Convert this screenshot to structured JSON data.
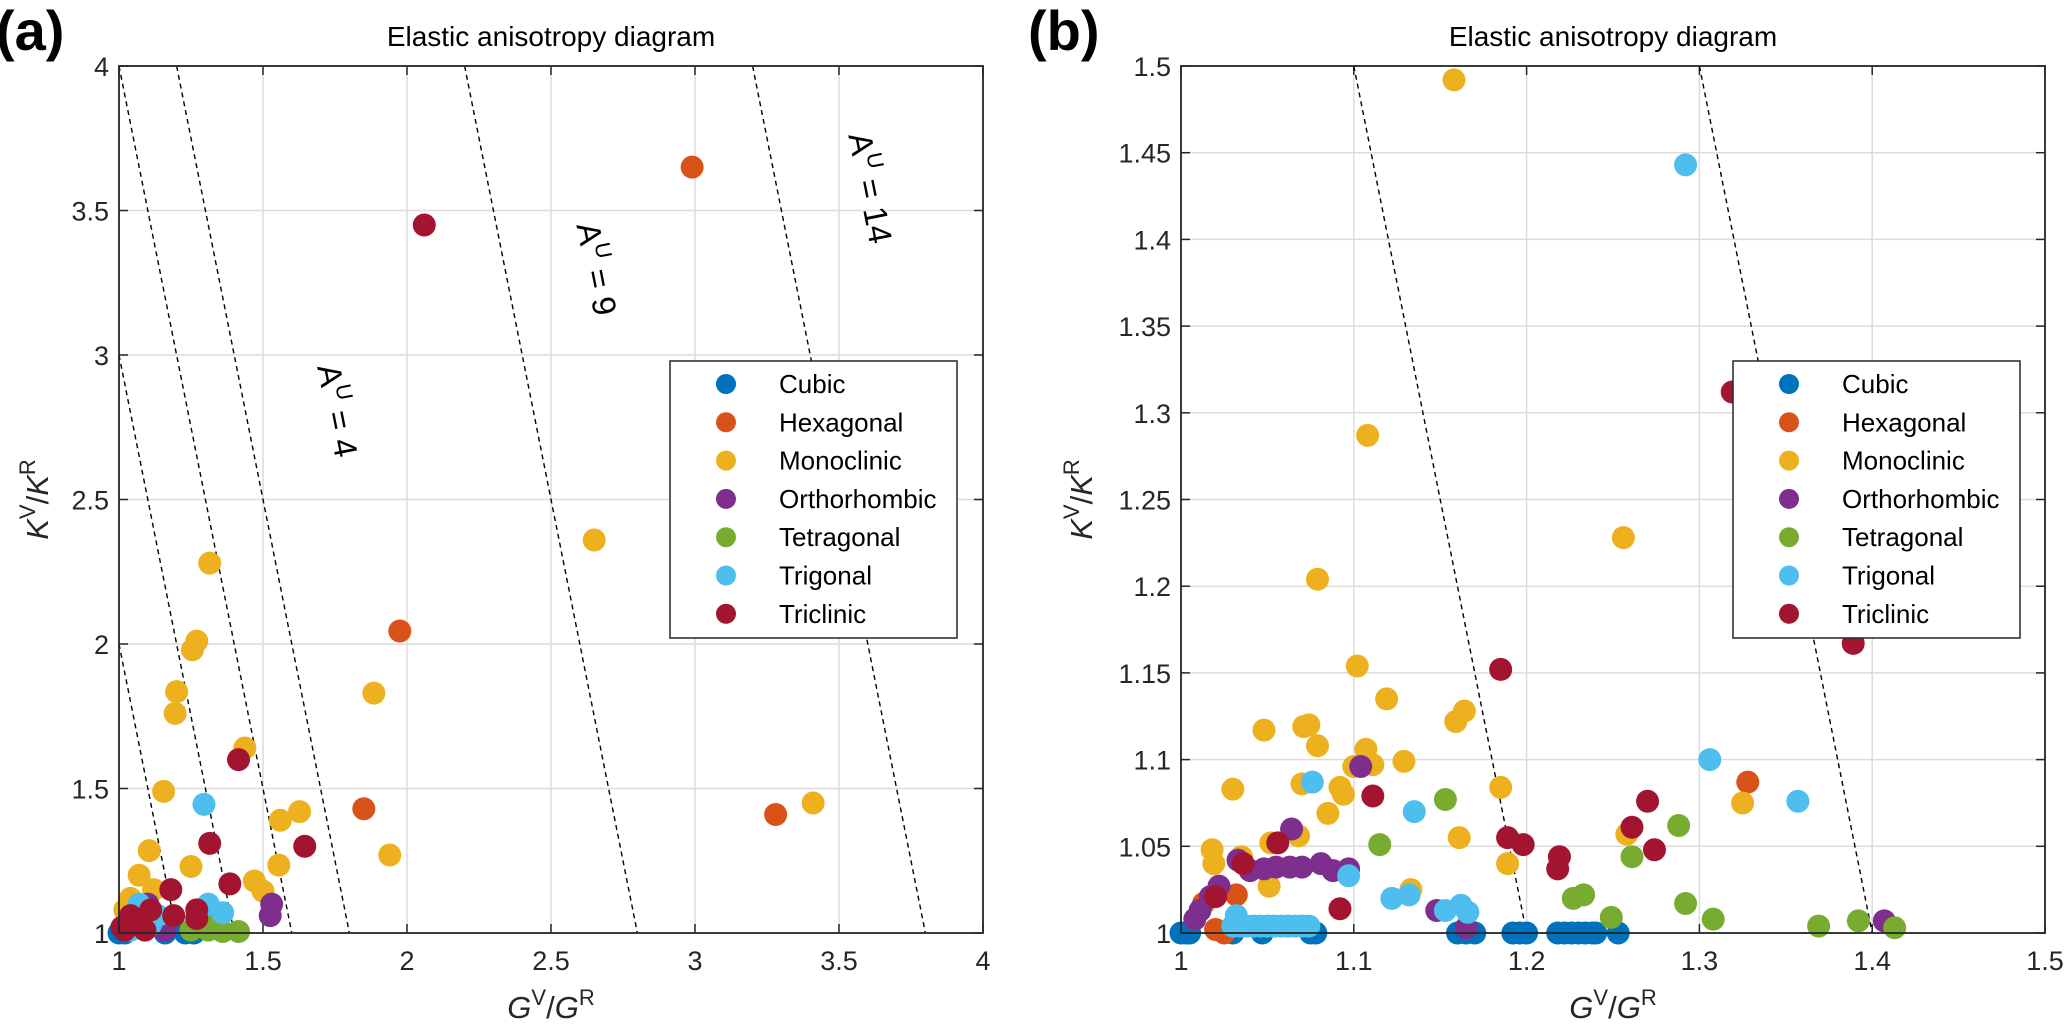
{
  "colors": {
    "Cubic": "#0072BD",
    "Hexagonal": "#D95319",
    "Monoclinic": "#EDB120",
    "Orthorhombic": "#7E2F8E",
    "Tetragonal": "#77AC30",
    "Trigonal": "#4DBEEE",
    "Triclinic": "#A2142F"
  },
  "chart_data": [
    {
      "panel_label": "(a)",
      "type": "scatter",
      "title": "Elastic anisotropy diagram",
      "xlabel": {
        "b1": "G",
        "s1": "V",
        "sep": "/",
        "b2": "G",
        "s2": "R"
      },
      "ylabel": {
        "b1": "K",
        "s1": "V",
        "sep": "/",
        "b2": "K",
        "s2": "R"
      },
      "xlim": [
        1,
        4
      ],
      "ylim": [
        1,
        4
      ],
      "xticks": [
        "1",
        "1.5",
        "2",
        "2.5",
        "3",
        "3.5",
        "4"
      ],
      "yticks": [
        "1",
        "1.5",
        "2",
        "2.5",
        "3",
        "3.5",
        "4"
      ],
      "grid": true,
      "legend_position": "center-right",
      "iso_lines_AU": [
        1,
        2,
        3,
        4,
        9,
        14
      ],
      "annotations": [
        {
          "base": "A",
          "sup": "U",
          "rest": " = 4"
        },
        {
          "base": "A",
          "sup": "U",
          "rest": " = 9"
        },
        {
          "base": "A",
          "sup": "U",
          "rest": " = 14"
        }
      ],
      "series": [
        {
          "name": "Cubic",
          "points": [
            [
              1.0,
              1.0
            ],
            [
              1.02,
              1.0
            ],
            [
              1.16,
              1.0
            ],
            [
              1.23,
              1.0
            ],
            [
              1.26,
              1.0
            ]
          ]
        },
        {
          "name": "Hexagonal",
          "points": [
            [
              2.99,
              3.65
            ],
            [
              1.975,
              2.045
            ],
            [
              1.85,
              1.43
            ],
            [
              3.28,
              1.41
            ]
          ]
        },
        {
          "name": "Monoclinic",
          "points": [
            [
              2.65,
              2.36
            ],
            [
              3.41,
              1.45
            ],
            [
              1.885,
              1.83
            ],
            [
              1.94,
              1.27
            ],
            [
              1.315,
              2.28
            ],
            [
              1.27,
              2.01
            ],
            [
              1.255,
              1.98
            ],
            [
              1.2,
              1.835
            ],
            [
              1.195,
              1.76
            ],
            [
              1.437,
              1.64
            ],
            [
              1.155,
              1.49
            ],
            [
              1.627,
              1.42
            ],
            [
              1.56,
              1.39
            ],
            [
              1.555,
              1.235
            ],
            [
              1.105,
              1.285
            ],
            [
              1.25,
              1.23
            ],
            [
              1.47,
              1.18
            ],
            [
              1.5,
              1.145
            ],
            [
              1.07,
              1.2
            ],
            [
              1.04,
              1.12
            ],
            [
              1.12,
              1.15
            ],
            [
              1.02,
              1.08
            ]
          ]
        },
        {
          "name": "Orthorhombic",
          "points": [
            [
              1.53,
              1.1
            ],
            [
              1.525,
              1.06
            ],
            [
              1.1,
              1.1
            ],
            [
              1.16,
              1.01
            ]
          ]
        },
        {
          "name": "Tetragonal",
          "points": [
            [
              1.31,
              1.01
            ],
            [
              1.36,
              1.005
            ],
            [
              1.415,
              1.005
            ],
            [
              1.25,
              1.01
            ],
            [
              1.34,
              1.07
            ]
          ]
        },
        {
          "name": "Trigonal",
          "points": [
            [
              1.295,
              1.445
            ],
            [
              1.31,
              1.1
            ],
            [
              1.36,
              1.07
            ],
            [
              1.07,
              1.1
            ],
            [
              1.135,
              1.06
            ],
            [
              1.04,
              1.01
            ],
            [
              1.11,
              1.03
            ]
          ]
        },
        {
          "name": "Triclinic",
          "points": [
            [
              2.06,
              3.45
            ],
            [
              1.415,
              1.6
            ],
            [
              1.645,
              1.3
            ],
            [
              1.315,
              1.31
            ],
            [
              1.385,
              1.17
            ],
            [
              1.18,
              1.15
            ],
            [
              1.02,
              1.01
            ],
            [
              1.07,
              1.03
            ],
            [
              1.09,
              1.01
            ],
            [
              1.11,
              1.08
            ],
            [
              1.19,
              1.06
            ],
            [
              1.27,
              1.08
            ],
            [
              1.27,
              1.05
            ],
            [
              1.04,
              1.06
            ],
            [
              1.01,
              1.02
            ]
          ]
        }
      ]
    },
    {
      "panel_label": "(b)",
      "type": "scatter",
      "title": "Elastic anisotropy diagram",
      "xlabel": {
        "b1": "G",
        "s1": "V",
        "sep": "/",
        "b2": "G",
        "s2": "R"
      },
      "ylabel": {
        "b1": "K",
        "s1": "V",
        "sep": "/",
        "b2": "K",
        "s2": "R"
      },
      "xlim": [
        1,
        1.5
      ],
      "ylim": [
        1,
        1.5
      ],
      "xticks": [
        "1",
        "1.1",
        "1.2",
        "1.3",
        "1.4",
        "1.5"
      ],
      "yticks": [
        "1",
        "1.05",
        "1.1",
        "1.15",
        "1.2",
        "1.25",
        "1.3",
        "1.35",
        "1.4",
        "1.45",
        "1.5"
      ],
      "grid": true,
      "legend_position": "center-right",
      "iso_lines_AU": [
        1,
        2
      ],
      "annotations": [],
      "series": [
        {
          "name": "Cubic",
          "points": [
            [
              1.0,
              1.0
            ],
            [
              1.003,
              1.0
            ],
            [
              1.005,
              1.0
            ],
            [
              1.03,
              1.0
            ],
            [
              1.047,
              1.0
            ],
            [
              1.075,
              1.0
            ],
            [
              1.078,
              1.0
            ],
            [
              1.16,
              1.0
            ],
            [
              1.165,
              1.0
            ],
            [
              1.17,
              1.0
            ],
            [
              1.192,
              1.0
            ],
            [
              1.196,
              1.0
            ],
            [
              1.2,
              1.0
            ],
            [
              1.218,
              1.0
            ],
            [
              1.222,
              1.0
            ],
            [
              1.226,
              1.0
            ],
            [
              1.23,
              1.0
            ],
            [
              1.234,
              1.0
            ],
            [
              1.238,
              1.0
            ],
            [
              1.24,
              1.0
            ],
            [
              1.253,
              1.0
            ]
          ]
        },
        {
          "name": "Hexagonal",
          "points": [
            [
              1.328,
              1.087
            ],
            [
              1.032,
              1.022
            ],
            [
              1.013,
              1.017
            ],
            [
              1.02,
              1.002
            ],
            [
              1.025,
              1.0
            ]
          ]
        },
        {
          "name": "Monoclinic",
          "points": [
            [
              1.158,
              1.492
            ],
            [
              1.108,
              1.287
            ],
            [
              1.079,
              1.204
            ],
            [
              1.256,
              1.228
            ],
            [
              1.102,
              1.154
            ],
            [
              1.119,
              1.135
            ],
            [
              1.164,
              1.128
            ],
            [
              1.159,
              1.122
            ],
            [
              1.048,
              1.117
            ],
            [
              1.071,
              1.119
            ],
            [
              1.074,
              1.12
            ],
            [
              1.079,
              1.108
            ],
            [
              1.107,
              1.106
            ],
            [
              1.1,
              1.096
            ],
            [
              1.111,
              1.097
            ],
            [
              1.129,
              1.099
            ],
            [
              1.03,
              1.083
            ],
            [
              1.07,
              1.086
            ],
            [
              1.092,
              1.084
            ],
            [
              1.094,
              1.08
            ],
            [
              1.085,
              1.069
            ],
            [
              1.185,
              1.084
            ],
            [
              1.161,
              1.055
            ],
            [
              1.325,
              1.075
            ],
            [
              1.018,
              1.048
            ],
            [
              1.019,
              1.04
            ],
            [
              1.035,
              1.044
            ],
            [
              1.052,
              1.052
            ],
            [
              1.068,
              1.056
            ],
            [
              1.051,
              1.027
            ],
            [
              1.133,
              1.025
            ],
            [
              1.189,
              1.04
            ],
            [
              1.258,
              1.057
            ]
          ]
        },
        {
          "name": "Orthorhombic",
          "points": [
            [
              1.104,
              1.096
            ],
            [
              1.064,
              1.06
            ],
            [
              1.033,
              1.042
            ],
            [
              1.04,
              1.036
            ],
            [
              1.048,
              1.037
            ],
            [
              1.055,
              1.038
            ],
            [
              1.063,
              1.038
            ],
            [
              1.07,
              1.038
            ],
            [
              1.081,
              1.04
            ],
            [
              1.088,
              1.036
            ],
            [
              1.097,
              1.037
            ],
            [
              1.022,
              1.027
            ],
            [
              1.017,
              1.021
            ],
            [
              1.011,
              1.013
            ],
            [
              1.008,
              1.008
            ],
            [
              1.148,
              1.013
            ],
            [
              1.165,
              1.003
            ],
            [
              1.407,
              1.007
            ]
          ]
        },
        {
          "name": "Tetragonal",
          "points": [
            [
              1.153,
              1.077
            ],
            [
              1.115,
              1.051
            ],
            [
              1.227,
              1.02
            ],
            [
              1.233,
              1.022
            ],
            [
              1.249,
              1.009
            ],
            [
              1.261,
              1.044
            ],
            [
              1.288,
              1.062
            ],
            [
              1.292,
              1.017
            ],
            [
              1.308,
              1.008
            ],
            [
              1.369,
              1.004
            ],
            [
              1.392,
              1.007
            ],
            [
              1.413,
              1.003
            ]
          ]
        },
        {
          "name": "Trigonal",
          "points": [
            [
              1.292,
              1.443
            ],
            [
              1.306,
              1.1
            ],
            [
              1.357,
              1.076
            ],
            [
              1.076,
              1.087
            ],
            [
              1.135,
              1.07
            ],
            [
              1.097,
              1.033
            ],
            [
              1.122,
              1.02
            ],
            [
              1.132,
              1.022
            ],
            [
              1.153,
              1.013
            ],
            [
              1.162,
              1.016
            ],
            [
              1.166,
              1.012
            ],
            [
              1.032,
              1.01
            ],
            [
              1.03,
              1.004
            ],
            [
              1.034,
              1.004
            ],
            [
              1.038,
              1.004
            ],
            [
              1.042,
              1.004
            ],
            [
              1.046,
              1.004
            ],
            [
              1.05,
              1.004
            ],
            [
              1.054,
              1.004
            ],
            [
              1.058,
              1.004
            ],
            [
              1.062,
              1.004
            ],
            [
              1.066,
              1.004
            ],
            [
              1.07,
              1.004
            ],
            [
              1.074,
              1.004
            ]
          ]
        },
        {
          "name": "Triclinic",
          "points": [
            [
              1.319,
              1.312
            ],
            [
              1.389,
              1.167
            ],
            [
              1.185,
              1.152
            ],
            [
              1.111,
              1.079
            ],
            [
              1.189,
              1.055
            ],
            [
              1.198,
              1.051
            ],
            [
              1.219,
              1.044
            ],
            [
              1.218,
              1.037
            ],
            [
              1.261,
              1.061
            ],
            [
              1.27,
              1.076
            ],
            [
              1.274,
              1.048
            ],
            [
              1.092,
              1.014
            ],
            [
              1.056,
              1.052
            ],
            [
              1.036,
              1.04
            ],
            [
              1.02,
              1.021
            ]
          ]
        }
      ]
    }
  ]
}
